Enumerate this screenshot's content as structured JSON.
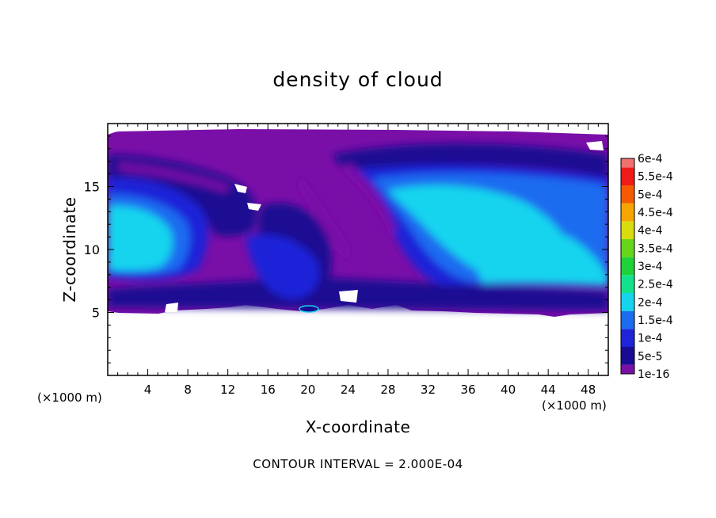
{
  "chart_data": {
    "type": "heatmap",
    "title": "density of cloud",
    "xlabel": "X-coordinate",
    "ylabel": "Z-coordinate",
    "x_unit": "(×1000 m)",
    "xlim": [
      0,
      50
    ],
    "ylim": [
      0,
      20
    ],
    "x_ticks": [
      4,
      8,
      12,
      16,
      20,
      24,
      28,
      32,
      36,
      40,
      44,
      48
    ],
    "y_ticks": [
      5,
      10,
      15
    ],
    "colorbar": {
      "labels": [
        "1e-16",
        "5e-5",
        "1e-4",
        "1.5e-4",
        "2e-4",
        "2.5e-4",
        "3e-4",
        "3.5e-4",
        "4e-4",
        "4.5e-4",
        "5e-4",
        "5.5e-4",
        "6e-4"
      ],
      "colors": [
        "#7a0fa8",
        "#1a0c92",
        "#1f24d8",
        "#1b6cf0",
        "#16d4ee",
        "#12e28c",
        "#20d23a",
        "#66d61a",
        "#d8dc0e",
        "#f5a400",
        "#f55a00",
        "#f01a1a",
        "#f07070"
      ]
    },
    "field_colors": {
      "base": "#7a0fa8",
      "low": "#1a0c92",
      "mid": "#1f24d8",
      "high": "#1b6cf0",
      "peak": "#16d4ee"
    },
    "footer": "CONTOUR INTERVAL = 2.000E-04"
  }
}
